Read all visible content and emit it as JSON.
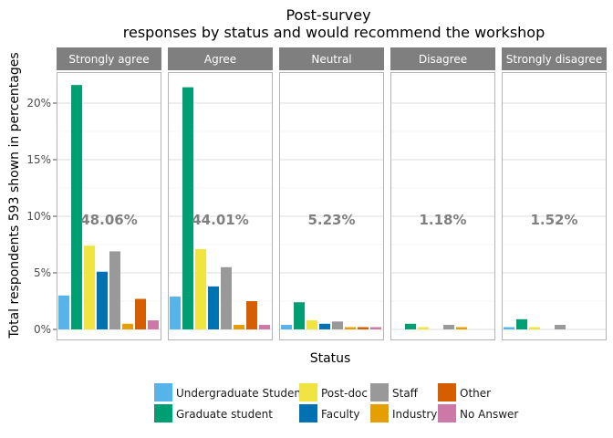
{
  "chart_data": {
    "type": "bar",
    "title": "Post-survey",
    "subtitle": "responses by status and would recommend the workshop",
    "xlabel": "Status",
    "ylabel": "Total respondents 593 shown in percentages",
    "ylim": [
      0,
      23
    ],
    "yticks": [
      0,
      5,
      10,
      15,
      20
    ],
    "ytick_labels": [
      "0%",
      "5%",
      "10%",
      "15%",
      "20%"
    ],
    "grid": true,
    "legend_position": "bottom",
    "panels": [
      {
        "label": "Strongly agree",
        "total_label": "48.06%"
      },
      {
        "label": "Agree",
        "total_label": "44.01%"
      },
      {
        "label": "Neutral",
        "total_label": "5.23%"
      },
      {
        "label": "Disagree",
        "total_label": "1.18%"
      },
      {
        "label": "Strongly disagree",
        "total_label": "1.52%"
      }
    ],
    "series": [
      {
        "name": "Undergraduate Student",
        "color": "#56B4E9",
        "values": [
          3.0,
          2.9,
          0.4,
          0.0,
          0.2
        ]
      },
      {
        "name": "Graduate student",
        "color": "#009E73",
        "values": [
          21.6,
          21.4,
          2.4,
          0.5,
          0.9
        ]
      },
      {
        "name": "Post-doc",
        "color": "#F0E442",
        "values": [
          7.4,
          7.1,
          0.8,
          0.2,
          0.2
        ]
      },
      {
        "name": "Faculty",
        "color": "#0072B2",
        "values": [
          5.1,
          3.8,
          0.5,
          0.0,
          0.0
        ]
      },
      {
        "name": "Staff",
        "color": "#999999",
        "values": [
          6.9,
          5.5,
          0.7,
          0.4,
          0.4
        ]
      },
      {
        "name": "Industry",
        "color": "#E69F00",
        "values": [
          0.5,
          0.4,
          0.2,
          0.2,
          0.0
        ]
      },
      {
        "name": "Other",
        "color": "#D55E00",
        "values": [
          2.7,
          2.5,
          0.2,
          0.0,
          0.0
        ]
      },
      {
        "name": "No Answer",
        "color": "#CC79A7",
        "values": [
          0.8,
          0.4,
          0.2,
          0.0,
          0.0
        ]
      }
    ]
  }
}
